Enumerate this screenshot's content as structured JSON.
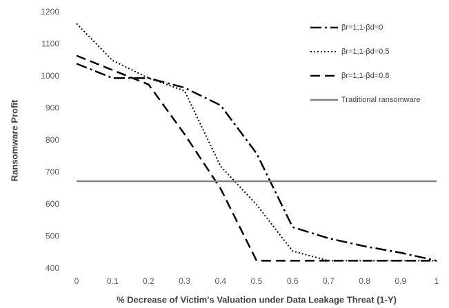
{
  "chart_data": {
    "type": "line",
    "x_label": "% Decrease of Victim's Valuation under Data Leakage Threat (1-Y)",
    "y_label": "Ransomware Profit",
    "x": [
      0,
      0.1,
      0.2,
      0.3,
      0.4,
      0.5,
      0.6,
      0.7,
      0.8,
      0.9,
      1
    ],
    "series": [
      {
        "name": "βr=1;1-βd=0",
        "color": "#000000",
        "dash": "dashdot",
        "values": [
          1040,
          995,
          995,
          965,
          910,
          760,
          530,
          495,
          470,
          450,
          425
        ]
      },
      {
        "name": "βr=1;1-βd=0.5",
        "color": "#000000",
        "dash": "dotted",
        "values": [
          1165,
          1050,
          995,
          955,
          720,
          600,
          455,
          425,
          425,
          425,
          425
        ]
      },
      {
        "name": "βr=1;1-βd=0.8",
        "color": "#000000",
        "dash": "dashed",
        "values": [
          1065,
          1020,
          975,
          820,
          650,
          425,
          425,
          425,
          425,
          425,
          425
        ]
      },
      {
        "name": "Traditional ransomware",
        "color": "#808080",
        "dash": "solid",
        "values": [
          673,
          673,
          673,
          673,
          673,
          673,
          673,
          673,
          673,
          673,
          673
        ]
      }
    ],
    "xlim": [
      0,
      1
    ],
    "xticks": [
      0,
      0.1,
      0.2,
      0.3,
      0.4,
      0.5,
      0.6,
      0.7,
      0.8,
      0.9,
      1
    ],
    "ylim": [
      400,
      1200
    ],
    "yticks": [
      400,
      500,
      600,
      700,
      800,
      900,
      1000,
      1100,
      1200
    ],
    "legend": "top-right"
  }
}
